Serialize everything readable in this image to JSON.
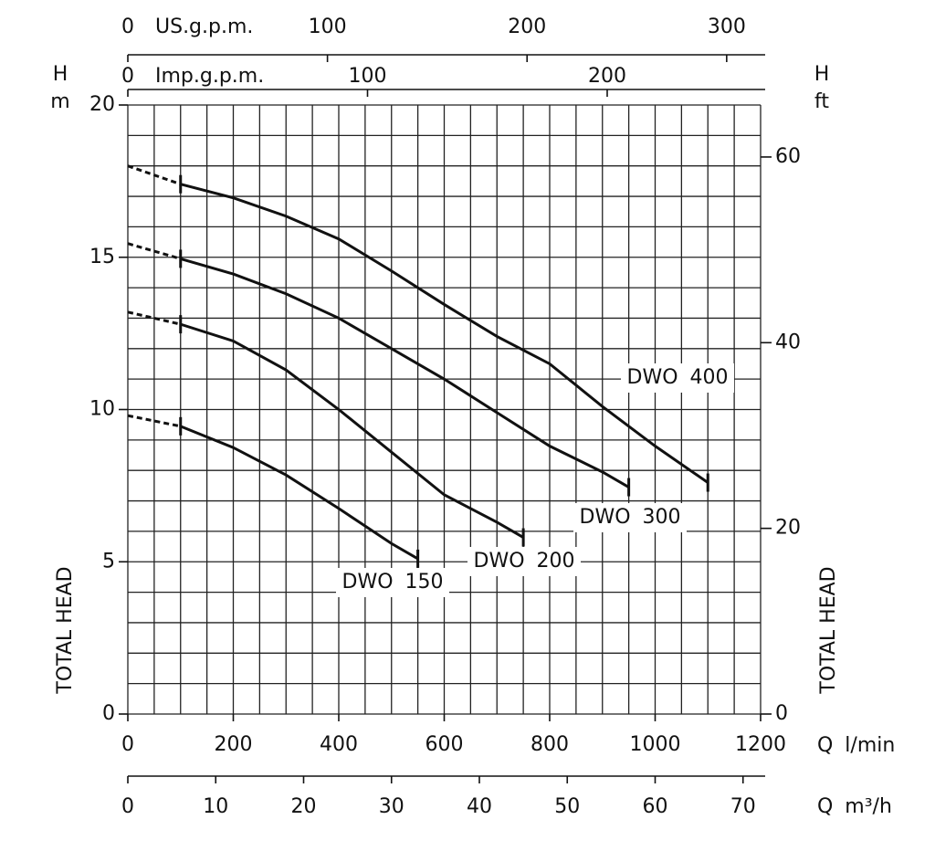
{
  "chart_data": {
    "type": "line",
    "xlabel": "Q l/min",
    "y_symbol": "H",
    "ylabel": "m",
    "y_title": "TOTAL HEAD",
    "xlim": [
      0,
      1200
    ],
    "xticks": [
      0,
      200,
      400,
      600,
      800,
      1000,
      1200
    ],
    "ylim": [
      0,
      20
    ],
    "yticks": [
      0,
      5,
      10,
      15,
      20
    ],
    "grid": true,
    "xgrid": [
      0,
      50,
      100,
      150,
      200,
      250,
      300,
      350,
      400,
      450,
      500,
      550,
      600,
      650,
      700,
      750,
      800,
      850,
      900,
      950,
      1000,
      1050,
      1100,
      1150,
      1200
    ],
    "ygrid": [
      0,
      1,
      2,
      3,
      4,
      5,
      6,
      7,
      8,
      9,
      10,
      11,
      12,
      13,
      14,
      15,
      16,
      17,
      18,
      19,
      20
    ],
    "top_axes": [
      {
        "label": "US.g.p.m.",
        "lim": [
          0,
          317.0
        ],
        "ticks": [
          0,
          100,
          200,
          300
        ]
      },
      {
        "label": "Imp.g.p.m.",
        "lim": [
          0,
          264.0
        ],
        "ticks": [
          0,
          100,
          200
        ]
      }
    ],
    "bottom_axis": {
      "label": "Q m³/h",
      "lim": [
        0,
        72
      ],
      "ticks": [
        0,
        10,
        20,
        30,
        40,
        50,
        60,
        70
      ]
    },
    "right_axis": {
      "symbol": "H",
      "label": "ft",
      "title": "TOTAL HEAD",
      "lim": [
        0,
        65.6
      ],
      "ticks": [
        0,
        20,
        40,
        60
      ]
    },
    "series": [
      {
        "name": "DWO 400",
        "color": "#111111",
        "dashed_to_x": 100,
        "x": [
          0,
          100,
          200,
          300,
          400,
          500,
          600,
          700,
          800,
          900,
          1000,
          1100
        ],
        "values": [
          18.0,
          17.4,
          16.95,
          16.35,
          15.6,
          14.55,
          13.45,
          12.4,
          11.5,
          10.1,
          8.8,
          7.6
        ]
      },
      {
        "name": "DWO 300",
        "color": "#111111",
        "dashed_to_x": 100,
        "x": [
          0,
          100,
          200,
          300,
          400,
          500,
          600,
          700,
          800,
          900,
          950
        ],
        "values": [
          15.45,
          14.95,
          14.45,
          13.8,
          13.0,
          12.0,
          11.0,
          9.9,
          8.8,
          7.95,
          7.45
        ]
      },
      {
        "name": "DWO 200",
        "color": "#111111",
        "dashed_to_x": 100,
        "x": [
          0,
          100,
          200,
          300,
          400,
          500,
          600,
          700,
          750
        ],
        "values": [
          13.2,
          12.8,
          12.25,
          11.3,
          10.0,
          8.6,
          7.2,
          6.3,
          5.8
        ]
      },
      {
        "name": "DWO 150",
        "color": "#111111",
        "dashed_to_x": 100,
        "x": [
          0,
          100,
          200,
          300,
          400,
          500,
          550
        ],
        "values": [
          9.8,
          9.45,
          8.75,
          7.85,
          6.75,
          5.6,
          5.1
        ]
      }
    ]
  }
}
